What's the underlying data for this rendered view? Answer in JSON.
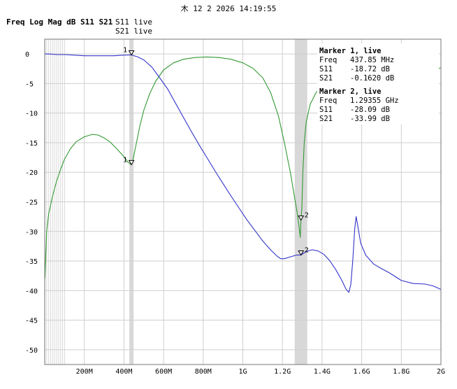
{
  "timestamp": "木 12 2 2026 14:19:55",
  "title": "Freq Log Mag dB S11 S21",
  "legend": [
    {
      "label": "S11 live",
      "color": "#339933"
    },
    {
      "label": "S21 live",
      "color": "#3333cc"
    }
  ],
  "markers_panel": [
    {
      "title": "Marker 1, live",
      "rows": [
        {
          "name": "Freq",
          "value": "437.85 MHz"
        },
        {
          "name": "S11",
          "value": "-18.72 dB"
        },
        {
          "name": "S21",
          "value": "-0.1620 dB"
        }
      ]
    },
    {
      "title": "Marker 2, live",
      "rows": [
        {
          "name": "Freq",
          "value": "1.29355 GHz"
        },
        {
          "name": "S11",
          "value": "-28.09 dB"
        },
        {
          "name": "S21",
          "value": "-33.99 dB"
        }
      ]
    }
  ],
  "chart_data": {
    "type": "line",
    "xlim": [
      0,
      2000
    ],
    "ylim": [
      -52.5,
      2.5
    ],
    "x_unit": "MHz",
    "xticks": [
      {
        "value": 200,
        "label": "200M"
      },
      {
        "value": 400,
        "label": "400M"
      },
      {
        "value": 600,
        "label": "600M"
      },
      {
        "value": 800,
        "label": "800M"
      },
      {
        "value": 1000,
        "label": "1G"
      },
      {
        "value": 1200,
        "label": "1.2G"
      },
      {
        "value": 1400,
        "label": "1.4G"
      },
      {
        "value": 1600,
        "label": "1.6G"
      },
      {
        "value": 1800,
        "label": "1.8G"
      },
      {
        "value": 2000,
        "label": "2G"
      }
    ],
    "yticks": [
      0,
      -5,
      -10,
      -15,
      -20,
      -25,
      -30,
      -35,
      -40,
      -45,
      -50
    ],
    "minor_gridlines_x": [
      1,
      10,
      20,
      30,
      40,
      50,
      60,
      70,
      80,
      90,
      100
    ],
    "grid": true,
    "marker_bands": [
      {
        "marker": "1",
        "x": 437.85
      },
      {
        "marker": "2",
        "x": 1293.55
      }
    ],
    "series": [
      {
        "name": "S11",
        "color": "#339933",
        "points": [
          [
            1,
            -38
          ],
          [
            10,
            -30
          ],
          [
            20,
            -27
          ],
          [
            40,
            -24
          ],
          [
            60,
            -21.5
          ],
          [
            80,
            -19.5
          ],
          [
            100,
            -17.8
          ],
          [
            130,
            -16
          ],
          [
            160,
            -14.8
          ],
          [
            200,
            -14
          ],
          [
            240,
            -13.6
          ],
          [
            270,
            -13.7
          ],
          [
            300,
            -14.2
          ],
          [
            330,
            -14.9
          ],
          [
            360,
            -15.9
          ],
          [
            390,
            -17
          ],
          [
            410,
            -17.8
          ],
          [
            420,
            -18.3
          ],
          [
            437.85,
            -18.72
          ],
          [
            445,
            -18
          ],
          [
            460,
            -15.5
          ],
          [
            480,
            -12.2
          ],
          [
            500,
            -9.5
          ],
          [
            530,
            -6.7
          ],
          [
            560,
            -4.6
          ],
          [
            600,
            -2.7
          ],
          [
            650,
            -1.5
          ],
          [
            700,
            -0.9
          ],
          [
            760,
            -0.6
          ],
          [
            820,
            -0.5
          ],
          [
            880,
            -0.6
          ],
          [
            940,
            -0.9
          ],
          [
            1000,
            -1.5
          ],
          [
            1050,
            -2.4
          ],
          [
            1100,
            -4
          ],
          [
            1140,
            -6.5
          ],
          [
            1180,
            -10.5
          ],
          [
            1210,
            -15
          ],
          [
            1240,
            -20
          ],
          [
            1260,
            -24
          ],
          [
            1275,
            -27
          ],
          [
            1285,
            -29.5
          ],
          [
            1290,
            -31
          ],
          [
            1293.55,
            -28.09
          ],
          [
            1298,
            -26
          ],
          [
            1303,
            -20
          ],
          [
            1310,
            -15
          ],
          [
            1320,
            -11.5
          ],
          [
            1340,
            -8.5
          ],
          [
            1370,
            -6.5
          ],
          [
            1400,
            -5.5
          ],
          [
            1450,
            -4.6
          ],
          [
            1500,
            -4.1
          ],
          [
            1550,
            -3.7
          ],
          [
            1600,
            -3.4
          ],
          [
            1700,
            -3
          ],
          [
            1800,
            -2.7
          ],
          [
            1900,
            -2.5
          ],
          [
            2000,
            -2.4
          ]
        ]
      },
      {
        "name": "S21",
        "color": "#3333cc",
        "points": [
          [
            1,
            0
          ],
          [
            20,
            0
          ],
          [
            60,
            -0.1
          ],
          [
            100,
            -0.1
          ],
          [
            150,
            -0.2
          ],
          [
            200,
            -0.3
          ],
          [
            260,
            -0.3
          ],
          [
            300,
            -0.3
          ],
          [
            350,
            -0.3
          ],
          [
            400,
            -0.2
          ],
          [
            437.85,
            -0.162
          ],
          [
            470,
            -0.5
          ],
          [
            500,
            -1
          ],
          [
            540,
            -2.2
          ],
          [
            580,
            -4
          ],
          [
            620,
            -5.9
          ],
          [
            660,
            -8.3
          ],
          [
            700,
            -10.7
          ],
          [
            740,
            -13.1
          ],
          [
            780,
            -15.4
          ],
          [
            820,
            -17.6
          ],
          [
            860,
            -19.8
          ],
          [
            900,
            -21.9
          ],
          [
            940,
            -24
          ],
          [
            980,
            -26
          ],
          [
            1020,
            -28
          ],
          [
            1060,
            -29.8
          ],
          [
            1100,
            -31.6
          ],
          [
            1140,
            -33.1
          ],
          [
            1170,
            -34.1
          ],
          [
            1190,
            -34.6
          ],
          [
            1210,
            -34.6
          ],
          [
            1240,
            -34.3
          ],
          [
            1270,
            -34
          ],
          [
            1293.55,
            -33.99
          ],
          [
            1320,
            -33.4
          ],
          [
            1350,
            -33.1
          ],
          [
            1380,
            -33.3
          ],
          [
            1410,
            -33.9
          ],
          [
            1440,
            -35
          ],
          [
            1470,
            -36.5
          ],
          [
            1500,
            -38.3
          ],
          [
            1520,
            -39.7
          ],
          [
            1535,
            -40.3
          ],
          [
            1545,
            -39
          ],
          [
            1555,
            -35
          ],
          [
            1565,
            -29.5
          ],
          [
            1572,
            -27.5
          ],
          [
            1580,
            -29
          ],
          [
            1595,
            -32
          ],
          [
            1620,
            -34
          ],
          [
            1660,
            -35.5
          ],
          [
            1700,
            -36.3
          ],
          [
            1740,
            -37
          ],
          [
            1800,
            -38.3
          ],
          [
            1860,
            -38.8
          ],
          [
            1920,
            -38.9
          ],
          [
            1960,
            -39.2
          ],
          [
            2000,
            -39.8
          ]
        ]
      }
    ],
    "markers": [
      {
        "label": "1",
        "x": 437.85,
        "s11": -18.72,
        "s21": -0.162
      },
      {
        "label": "2",
        "x": 1293.55,
        "s11": -28.09,
        "s21": -33.99
      }
    ]
  }
}
